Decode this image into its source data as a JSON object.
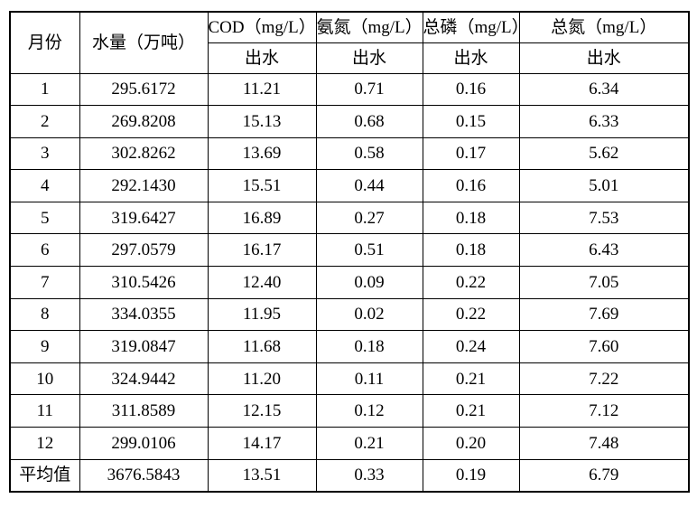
{
  "table": {
    "title_semantic": "monthly-effluent-water-quality-table",
    "headers": {
      "month": "月份",
      "water_volume": "水量（万吨）",
      "cod": "COD（mg/L）",
      "ammonia_nitrogen": "氨氮（mg/L）",
      "total_phosphorus": "总磷（mg/L）",
      "total_nitrogen": "总氮（mg/L）",
      "effluent_sublabel": "出水"
    },
    "column_keys": [
      "month",
      "water-volume",
      "cod",
      "ammonia-nitrogen",
      "total-phosphorus",
      "total-nitrogen"
    ],
    "average_row_label": "平均值",
    "rows": [
      [
        "1",
        "295.6172",
        "11.21",
        "0.71",
        "0.16",
        "6.34"
      ],
      [
        "2",
        "269.8208",
        "15.13",
        "0.68",
        "0.15",
        "6.33"
      ],
      [
        "3",
        "302.8262",
        "13.69",
        "0.58",
        "0.17",
        "5.62"
      ],
      [
        "4",
        "292.1430",
        "15.51",
        "0.44",
        "0.16",
        "5.01"
      ],
      [
        "5",
        "319.6427",
        "16.89",
        "0.27",
        "0.18",
        "7.53"
      ],
      [
        "6",
        "297.0579",
        "16.17",
        "0.51",
        "0.18",
        "6.43"
      ],
      [
        "7",
        "310.5426",
        "12.40",
        "0.09",
        "0.22",
        "7.05"
      ],
      [
        "8",
        "334.0355",
        "11.95",
        "0.02",
        "0.22",
        "7.69"
      ],
      [
        "9",
        "319.0847",
        "11.68",
        "0.18",
        "0.24",
        "7.60"
      ],
      [
        "10",
        "324.9442",
        "11.20",
        "0.11",
        "0.21",
        "7.22"
      ],
      [
        "11",
        "311.8589",
        "12.15",
        "0.12",
        "0.21",
        "7.12"
      ],
      [
        "12",
        "299.0106",
        "14.17",
        "0.21",
        "0.20",
        "7.48"
      ],
      [
        "平均值",
        "3676.5843",
        "13.51",
        "0.33",
        "0.19",
        "6.79"
      ]
    ]
  },
  "colors": {
    "border": "#000000",
    "text": "#000000",
    "background": "#ffffff"
  }
}
